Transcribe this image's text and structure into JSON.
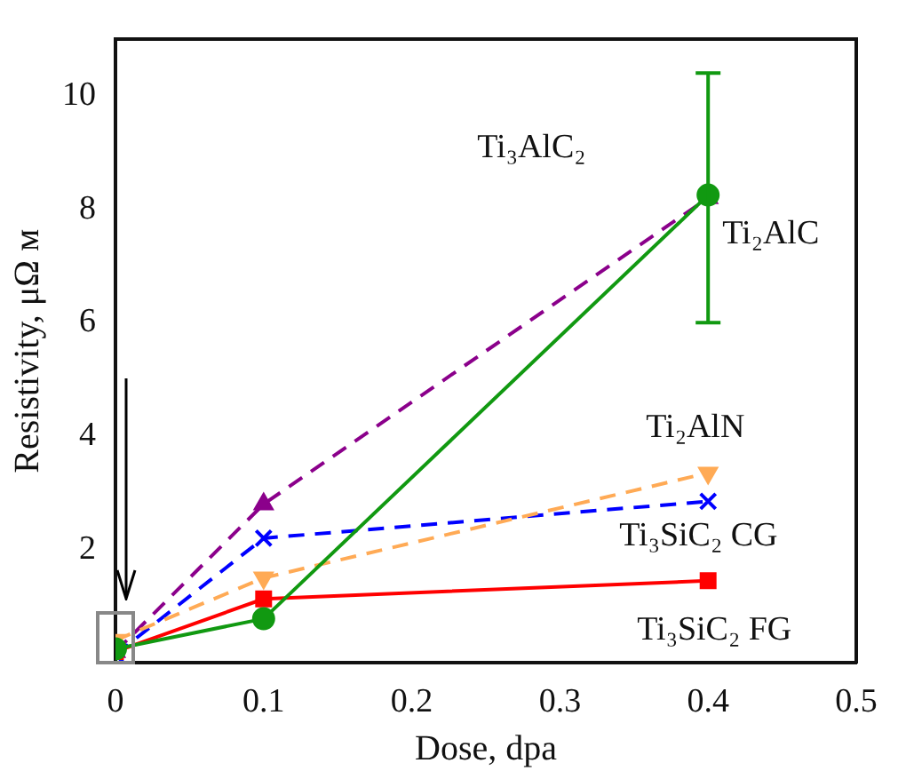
{
  "chart_data": {
    "type": "line",
    "xlabel": "Dose, dpa",
    "ylabel": "Resistivity, μΩ м",
    "x": [
      0,
      0.1,
      0.4
    ],
    "xlim": [
      0,
      0.5
    ],
    "xticks": [
      0,
      0.1,
      0.2,
      0.3,
      0.4,
      0.5
    ],
    "ylim": [
      0,
      11
    ],
    "yticks": [
      2,
      4,
      6,
      8,
      10
    ],
    "grid": false,
    "legend": false,
    "series": [
      {
        "name": "Ti₃AlC₂",
        "color": "#8b008b",
        "values": [
          0.2,
          2.8,
          8.2
        ],
        "marker": "triangle",
        "line_style": "dashed"
      },
      {
        "name": "Ti₃SiC₂ CG",
        "color": "#0000ff",
        "values": [
          0.15,
          2.2,
          2.85
        ],
        "marker": "cross",
        "line_style": "dashed"
      },
      {
        "name": "Ti₂AlN",
        "color": "#ffaa55",
        "values": [
          0.4,
          1.5,
          3.35
        ],
        "marker": "triangle-down",
        "line_style": "dashed"
      },
      {
        "name": "Ti₃SiC₂ FG",
        "color": "#ff0000",
        "values": [
          0.2,
          1.13,
          1.45
        ],
        "marker": "square",
        "line_style": "solid"
      },
      {
        "name": "Ti₂AlC",
        "color": "#119911",
        "values": [
          0.25,
          0.78,
          8.25
        ],
        "marker": "circle",
        "line_style": "solid",
        "errors": [
          null,
          null,
          [
            6.0,
            10.4
          ]
        ]
      }
    ]
  }
}
